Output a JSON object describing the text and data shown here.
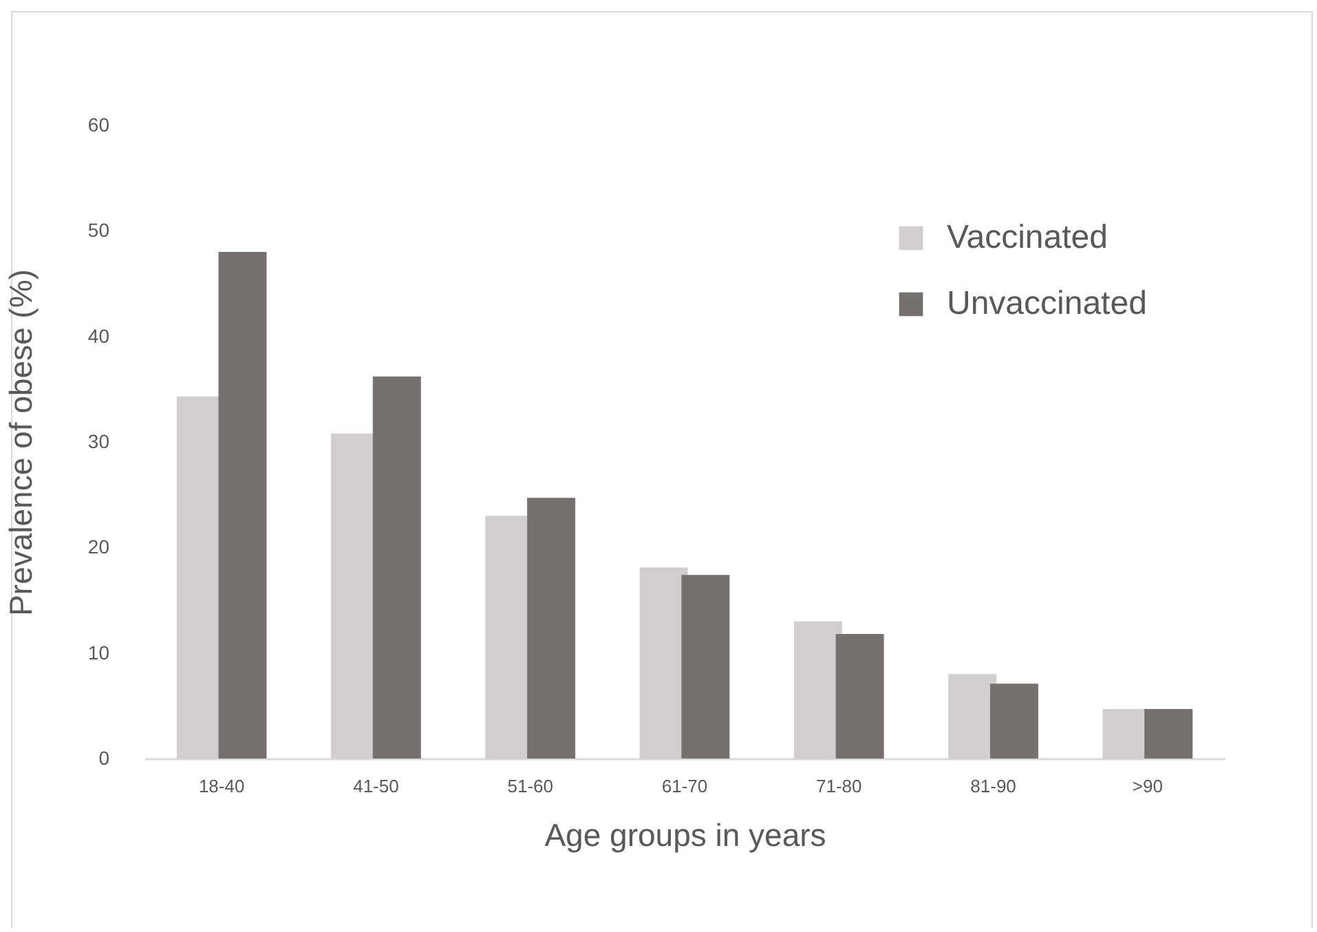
{
  "chart_data": {
    "type": "bar",
    "xlabel": "Age groups in years",
    "ylabel": "Prevalence of obese (%)",
    "categories": [
      "18-40",
      "41-50",
      "51-60",
      "61-70",
      "71-80",
      "81-90",
      ">90"
    ],
    "series": [
      {
        "name": "Vaccinated",
        "color": "#d0cece",
        "values": [
          34.3,
          30.8,
          23.0,
          18.1,
          13.0,
          8.0,
          4.7
        ]
      },
      {
        "name": "Unvaccinated",
        "color": "#767171",
        "values": [
          48.0,
          36.2,
          24.7,
          17.4,
          11.8,
          7.1,
          4.7
        ]
      }
    ],
    "ylim": [
      0,
      60
    ],
    "yticks": [
      0,
      10,
      20,
      30,
      40,
      50,
      60
    ],
    "grid": false,
    "legend": "top right"
  }
}
